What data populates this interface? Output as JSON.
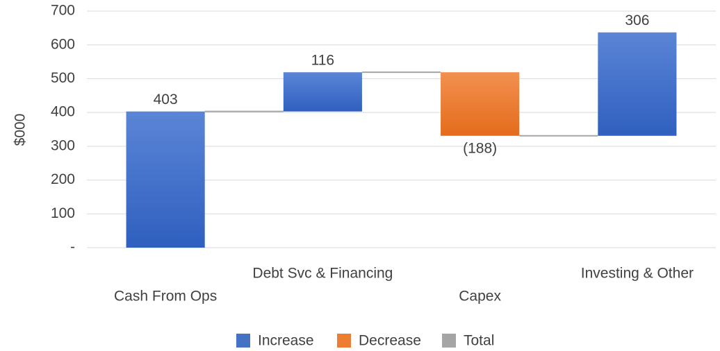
{
  "chart_data": {
    "type": "waterfall",
    "y_axis_label": "$000",
    "categories": [
      "Cash From Ops",
      "Debt Svc & Financing",
      "Capex",
      "Investing & Other"
    ],
    "values": [
      403,
      116,
      -188,
      306
    ],
    "value_labels": [
      "403",
      "116",
      "(188)",
      "306"
    ],
    "legend": [
      {
        "name": "Increase",
        "color": "#4472c4"
      },
      {
        "name": "Decrease",
        "color": "#ed7d31"
      },
      {
        "name": "Total",
        "color": "#a5a5a5"
      }
    ],
    "ylim": [
      0,
      700
    ],
    "yticks": [
      {
        "value": 0,
        "label": "-"
      },
      100,
      200,
      300,
      400,
      500,
      600,
      700
    ],
    "grid": true
  }
}
